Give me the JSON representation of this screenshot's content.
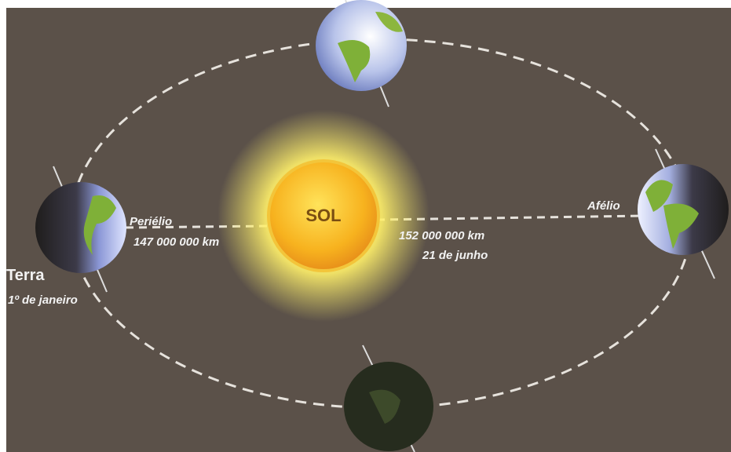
{
  "sun": {
    "label": "SOL"
  },
  "perihelion": {
    "label": "Periélio",
    "distance": "147 000 000 km"
  },
  "aphelion": {
    "label": "Afélio",
    "distance": "152 000 000 km",
    "date": "21 de junho"
  },
  "earth": {
    "label": "Terra",
    "date": "1º de janeiro"
  }
}
